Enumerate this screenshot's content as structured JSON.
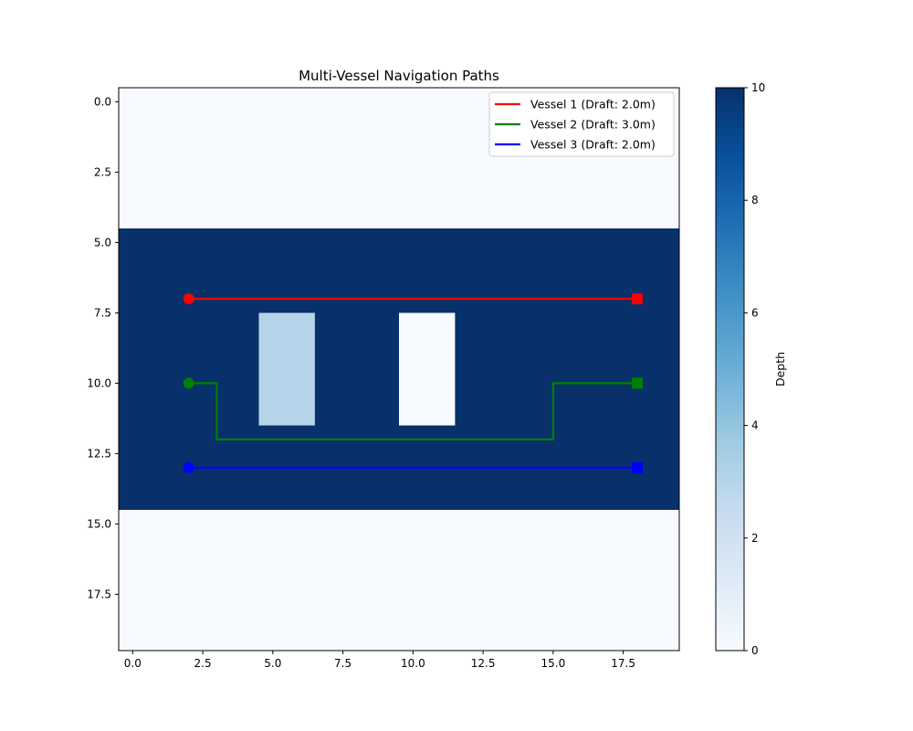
{
  "chart_data": {
    "type": "heatmap",
    "title": "Multi-Vessel Navigation Paths",
    "xlabel": "",
    "ylabel": "",
    "xlim": [
      -0.5,
      19.5
    ],
    "ylim": [
      19.5,
      -0.5
    ],
    "x_ticks": [
      "0.0",
      "2.5",
      "5.0",
      "7.5",
      "10.0",
      "12.5",
      "15.0",
      "17.5"
    ],
    "y_ticks": [
      "0.0",
      "2.5",
      "5.0",
      "7.5",
      "10.0",
      "12.5",
      "15.0",
      "17.5"
    ],
    "grid": false,
    "legend_position": "top-right",
    "depth_map": {
      "colormap": "Blues",
      "vmin": 0,
      "vmax": 10,
      "default_depth": 0,
      "regions": [
        {
          "rows": [
            5,
            14
          ],
          "cols": [
            0,
            19
          ],
          "depth": 10
        },
        {
          "rows": [
            8,
            11
          ],
          "cols": [
            5,
            6
          ],
          "depth": 3
        },
        {
          "rows": [
            8,
            11
          ],
          "cols": [
            10,
            11
          ],
          "depth": 0
        }
      ]
    },
    "colorbar": {
      "label": "Depth",
      "ticks": [
        "0",
        "2",
        "4",
        "6",
        "8",
        "10"
      ]
    },
    "series": [
      {
        "name": "Vessel 1 (Draft: 2.0m)",
        "color": "#ff0000",
        "path": [
          [
            2,
            7
          ],
          [
            18,
            7
          ]
        ]
      },
      {
        "name": "Vessel 2 (Draft: 3.0m)",
        "color": "#008000",
        "path": [
          [
            2,
            10
          ],
          [
            3,
            10
          ],
          [
            3,
            12
          ],
          [
            15,
            12
          ],
          [
            15,
            10
          ],
          [
            18,
            10
          ]
        ]
      },
      {
        "name": "Vessel 3 (Draft: 2.0m)",
        "color": "#0000ff",
        "path": [
          [
            2,
            13
          ],
          [
            18,
            13
          ]
        ]
      }
    ]
  }
}
